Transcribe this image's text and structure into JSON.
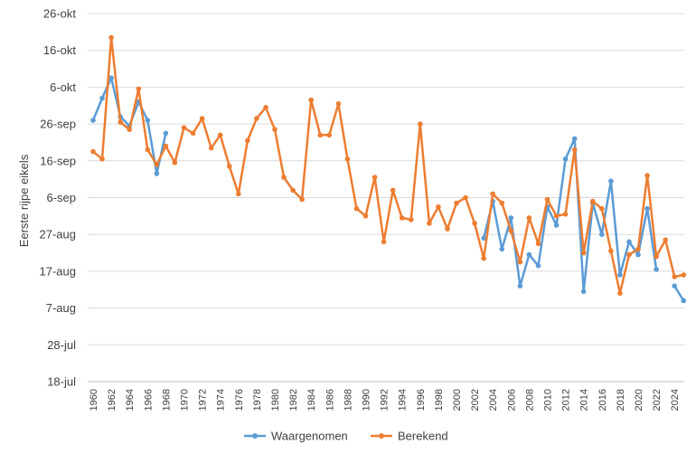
{
  "chart_data": {
    "type": "line",
    "title": "",
    "ylabel": "Eerste rijpe eikels",
    "xlabel": "",
    "y_ticks": [
      {
        "label": "18-jul",
        "value": 0
      },
      {
        "label": "28-jul",
        "value": 10
      },
      {
        "label": "7-aug",
        "value": 20
      },
      {
        "label": "17-aug",
        "value": 30
      },
      {
        "label": "27-aug",
        "value": 40
      },
      {
        "label": "6-sep",
        "value": 50
      },
      {
        "label": "16-sep",
        "value": 60
      },
      {
        "label": "26-sep",
        "value": 70
      },
      {
        "label": "6-okt",
        "value": 80
      },
      {
        "label": "16-okt",
        "value": 90
      },
      {
        "label": "26-okt",
        "value": 100
      }
    ],
    "y_unit_note": "y values are days after 18-jul",
    "ylim": [
      0,
      100
    ],
    "xlim": [
      1960,
      2025
    ],
    "x_ticks": [
      1960,
      1962,
      1964,
      1966,
      1968,
      1970,
      1972,
      1974,
      1976,
      1978,
      1980,
      1982,
      1984,
      1986,
      1988,
      1990,
      1992,
      1994,
      1996,
      1998,
      2000,
      2002,
      2004,
      2006,
      2008,
      2010,
      2012,
      2014,
      2016,
      2018,
      2020,
      2022,
      2024
    ],
    "grid": true,
    "legend_position": "bottom",
    "series": [
      {
        "name": "Waargenomen",
        "color": "#5B9BD5",
        "points": [
          [
            1960,
            71
          ],
          [
            1961,
            77
          ],
          [
            1962,
            82.5
          ],
          [
            1963,
            72
          ],
          [
            1964,
            69.5
          ],
          [
            1965,
            76
          ],
          [
            1966,
            71
          ],
          [
            1967,
            56.5
          ],
          [
            1968,
            67.5
          ],
          [
            2003,
            39
          ],
          [
            2004,
            49
          ],
          [
            2005,
            36
          ],
          [
            2006,
            44.5
          ],
          [
            2007,
            26
          ],
          [
            2008,
            34.5
          ],
          [
            2009,
            31.5
          ],
          [
            2010,
            47.5
          ],
          [
            2011,
            42.5
          ],
          [
            2012,
            60.5
          ],
          [
            2013,
            66
          ],
          [
            2014,
            24.5
          ],
          [
            2015,
            48.5
          ],
          [
            2016,
            40
          ],
          [
            2017,
            54.5
          ],
          [
            2018,
            29
          ],
          [
            2019,
            38
          ],
          [
            2020,
            34.5
          ],
          [
            2021,
            47
          ],
          [
            2022,
            30.5
          ],
          [
            2024,
            26
          ],
          [
            2025,
            22
          ]
        ]
      },
      {
        "name": "Berekend",
        "color": "#ED7D31",
        "points": [
          [
            1960,
            62.5
          ],
          [
            1961,
            60.5
          ],
          [
            1962,
            93.5
          ],
          [
            1963,
            70.5
          ],
          [
            1964,
            68.5
          ],
          [
            1965,
            79.5
          ],
          [
            1966,
            63
          ],
          [
            1967,
            59
          ],
          [
            1968,
            64
          ],
          [
            1969,
            59.5
          ],
          [
            1970,
            69
          ],
          [
            1971,
            67.5
          ],
          [
            1972,
            71.5
          ],
          [
            1973,
            63.5
          ],
          [
            1974,
            67
          ],
          [
            1975,
            58.5
          ],
          [
            1976,
            51
          ],
          [
            1977,
            65.5
          ],
          [
            1978,
            71.5
          ],
          [
            1979,
            74.5
          ],
          [
            1980,
            68.5
          ],
          [
            1981,
            55.5
          ],
          [
            1982,
            52
          ],
          [
            1983,
            49.5
          ],
          [
            1984,
            76.5
          ],
          [
            1985,
            67
          ],
          [
            1986,
            67
          ],
          [
            1987,
            75.5
          ],
          [
            1988,
            60.5
          ],
          [
            1989,
            47
          ],
          [
            1990,
            45
          ],
          [
            1991,
            55.5
          ],
          [
            1992,
            38
          ],
          [
            1993,
            52
          ],
          [
            1994,
            44.5
          ],
          [
            1995,
            44
          ],
          [
            1996,
            70
          ],
          [
            1997,
            43
          ],
          [
            1998,
            47.5
          ],
          [
            1999,
            41.5
          ],
          [
            2000,
            48.5
          ],
          [
            2001,
            50
          ],
          [
            2002,
            43
          ],
          [
            2003,
            33.5
          ],
          [
            2004,
            51
          ],
          [
            2005,
            48.5
          ],
          [
            2006,
            41
          ],
          [
            2007,
            32.5
          ],
          [
            2008,
            44.5
          ],
          [
            2009,
            37.5
          ],
          [
            2010,
            49.5
          ],
          [
            2011,
            45
          ],
          [
            2012,
            45.5
          ],
          [
            2013,
            63
          ],
          [
            2014,
            35
          ],
          [
            2015,
            49
          ],
          [
            2016,
            47
          ],
          [
            2017,
            35.5
          ],
          [
            2018,
            24
          ],
          [
            2019,
            34.5
          ],
          [
            2020,
            36
          ],
          [
            2021,
            56
          ],
          [
            2022,
            34
          ],
          [
            2023,
            38.5
          ],
          [
            2024,
            28.5
          ],
          [
            2025,
            29
          ]
        ]
      }
    ]
  }
}
